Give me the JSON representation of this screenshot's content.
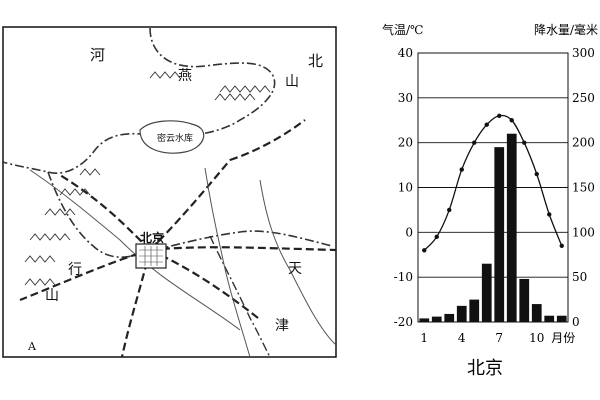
{
  "map": {
    "labels": {
      "he": "河",
      "bei": "北",
      "yan": "燕",
      "shan1": "山",
      "reservoir": "密云水库",
      "beijing": "北京",
      "tian": "天",
      "xing": "行",
      "shan2": "山",
      "jin": "津",
      "corner": "A"
    }
  },
  "chart_data": {
    "type": "climate",
    "title": "北京",
    "left_axis_label": "气温/℃",
    "right_axis_label": "降水量/毫米",
    "temp_range": [
      -20,
      40
    ],
    "temp_ticks": [
      -20,
      -10,
      0,
      10,
      20,
      30,
      40
    ],
    "precip_range": [
      0,
      300
    ],
    "precip_ticks": [
      0,
      50,
      100,
      150,
      200,
      250,
      300
    ],
    "month_ticks": [
      "1",
      "4",
      "7",
      "10"
    ],
    "month_unit": "月份",
    "months": [
      1,
      2,
      3,
      4,
      5,
      6,
      7,
      8,
      9,
      10,
      11,
      12
    ],
    "temperature": [
      -4,
      -1,
      5,
      14,
      20,
      24,
      26,
      25,
      20,
      13,
      4,
      -3
    ],
    "precipitation": [
      4,
      6,
      9,
      18,
      25,
      65,
      195,
      210,
      48,
      20,
      7,
      7
    ],
    "grid": "horizontal"
  }
}
